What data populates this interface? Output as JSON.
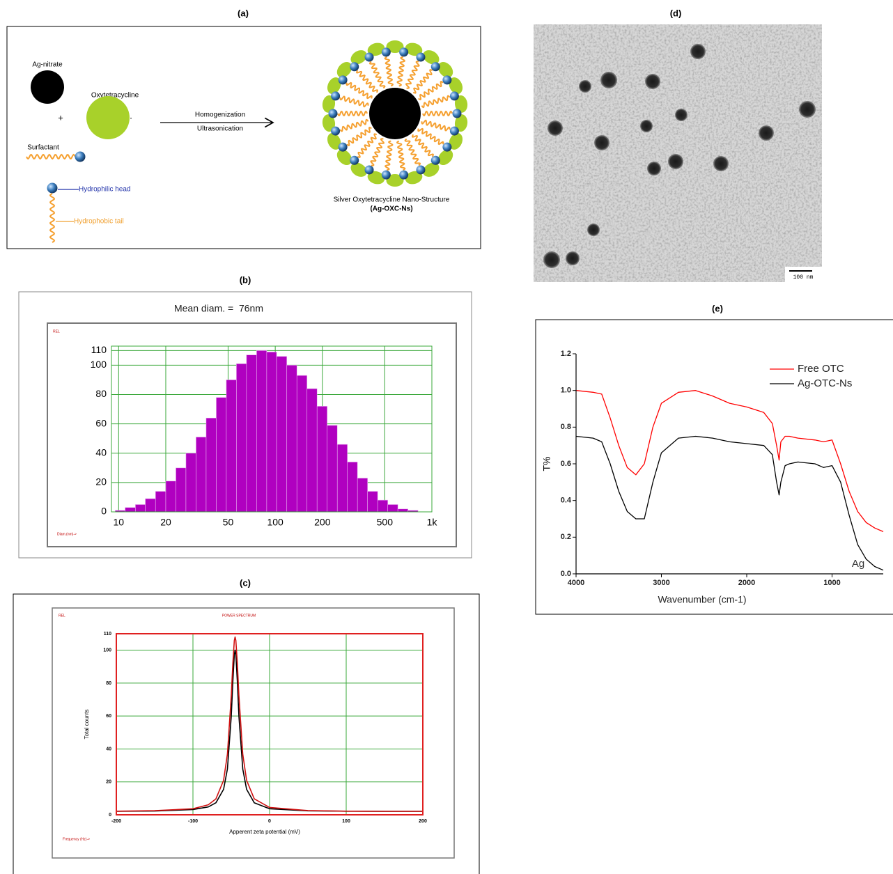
{
  "panel_labels": [
    "(a)",
    "(b)",
    "(c)",
    "(d)",
    "(e)"
  ],
  "diagram": {
    "ag_nitrate": "Ag-nitrate",
    "oxytetracycline": "Oxytetracycline",
    "plus": "+",
    "dot": "·",
    "surfactant": "Surfactant",
    "hydrophilic": "Hydrophilic head",
    "hydrophobic": "Hydrophobic tail",
    "arrow_top": "Homogenization",
    "arrow_bottom": "Ultrasonication",
    "product": "Silver Oxytetracycline Nano-Structure",
    "product_abbr": "(Ag-OXC-Ns)"
  },
  "image": {
    "scale_bar": "100 nm"
  },
  "chart_data": [
    {
      "type": "histogram",
      "title": "Mean diam. =  76nm",
      "corner_label": "REL",
      "x_label": "Diam.(nm)->",
      "xscale": "log",
      "bins": [
        9.5,
        11,
        12.8,
        14.8,
        17.2,
        20,
        23.2,
        26.9,
        31.2,
        36.2,
        42,
        48.7,
        56.5,
        65.5,
        76,
        88.2,
        102,
        118.5,
        137.5,
        159.5,
        185,
        214.6,
        249,
        288.8,
        335,
        388.6,
        450.8,
        523,
        606.6,
        703.7,
        816
      ],
      "values": [
        1,
        3,
        5,
        9,
        14,
        21,
        30,
        40,
        51,
        64,
        78,
        90,
        101,
        107,
        110,
        109,
        106,
        100,
        93,
        84,
        72,
        59,
        46,
        34,
        23,
        14,
        8,
        5,
        2,
        1
      ],
      "color": "#b000c0",
      "xlim": [
        9,
        1000
      ],
      "xticks": [
        10,
        20,
        50,
        100,
        200,
        500,
        {
          "value": 1000,
          "label": "1k"
        }
      ],
      "ylim": [
        0,
        113
      ],
      "yticks": [
        0,
        20,
        40,
        60,
        80,
        100,
        110
      ],
      "grid": true,
      "grid_color": "#3aa83a"
    },
    {
      "type": "line",
      "subtitle": "POWER SPECTRUM",
      "corner_label": "REL",
      "footnote": "Frequency (Hz)->",
      "x_label": "Apperent zeta potential (mV)",
      "y_label": "Total counts",
      "x": [
        -200,
        -150,
        -100,
        -80,
        -70,
        -60,
        -55,
        -50,
        -48,
        -46,
        -45,
        -44,
        -42,
        -40,
        -35,
        -30,
        -20,
        0,
        50,
        100,
        150,
        200
      ],
      "series": [
        {
          "color": "#d01010",
          "values": [
            2.2,
            2.5,
            3.7,
            6.1,
            9.7,
            21,
            36.9,
            72.2,
            91.5,
            105.9,
            108,
            105.9,
            91.5,
            72.2,
            36.9,
            21,
            9.7,
            4.5,
            2.6,
            2.2,
            2.1,
            2.1
          ]
        },
        {
          "color": "#000000",
          "values": [
            2.1,
            2.3,
            3.2,
            4.8,
            7.3,
            15.5,
            27.9,
            59.8,
            80.4,
            97.3,
            100,
            97.3,
            80.4,
            59.8,
            27.9,
            15.5,
            7.3,
            3.7,
            2.4,
            2.2,
            2.1,
            2.1
          ]
        }
      ],
      "xlim": [
        -200,
        200
      ],
      "ylim": [
        0,
        110
      ],
      "xticks": [
        -200,
        -100,
        0,
        100,
        200
      ],
      "yticks": [
        0,
        20,
        40,
        60,
        80,
        100,
        110
      ],
      "grid": true,
      "grid_color": "#3aa83a",
      "frame_color": "#e02020"
    },
    {
      "type": "line",
      "x_label": "Wavenumber (cm-1)",
      "y_label": "T%",
      "annotation": "Ag",
      "legend": "upper right",
      "x": [
        4000,
        3800,
        3700,
        3600,
        3500,
        3400,
        3300,
        3200,
        3100,
        3000,
        2800,
        2600,
        2400,
        2200,
        2000,
        1800,
        1700,
        1650,
        1620,
        1600,
        1550,
        1500,
        1400,
        1200,
        1100,
        1000,
        900,
        800,
        700,
        600,
        500,
        400
      ],
      "series": [
        {
          "name": "Free OTC",
          "color": "#ff0000",
          "values": [
            1,
            0.99,
            0.98,
            0.85,
            0.7,
            0.58,
            0.54,
            0.6,
            0.8,
            0.93,
            0.99,
            1,
            0.97,
            0.93,
            0.91,
            0.88,
            0.82,
            0.7,
            0.62,
            0.72,
            0.75,
            0.75,
            0.74,
            0.73,
            0.72,
            0.73,
            0.6,
            0.45,
            0.34,
            0.28,
            0.25,
            0.23
          ]
        },
        {
          "name": "Ag-OTC-Ns",
          "color": "#000000",
          "values": [
            0.75,
            0.74,
            0.72,
            0.6,
            0.45,
            0.34,
            0.3,
            0.3,
            0.5,
            0.66,
            0.74,
            0.75,
            0.74,
            0.72,
            0.71,
            0.7,
            0.65,
            0.5,
            0.43,
            0.5,
            0.59,
            0.6,
            0.61,
            0.6,
            0.58,
            0.59,
            0.5,
            0.32,
            0.16,
            0.08,
            0.04,
            0.02
          ]
        }
      ],
      "xlim": [
        4000,
        400
      ],
      "ylim": [
        0,
        1.2
      ],
      "xticks": [
        4000,
        3000,
        2000,
        1000
      ],
      "yticks": [
        {
          "value": 0,
          "label": "0.0"
        },
        0.2,
        0.4,
        0.6,
        0.8,
        {
          "value": 1,
          "label": "1.0"
        },
        1.2
      ]
    }
  ]
}
